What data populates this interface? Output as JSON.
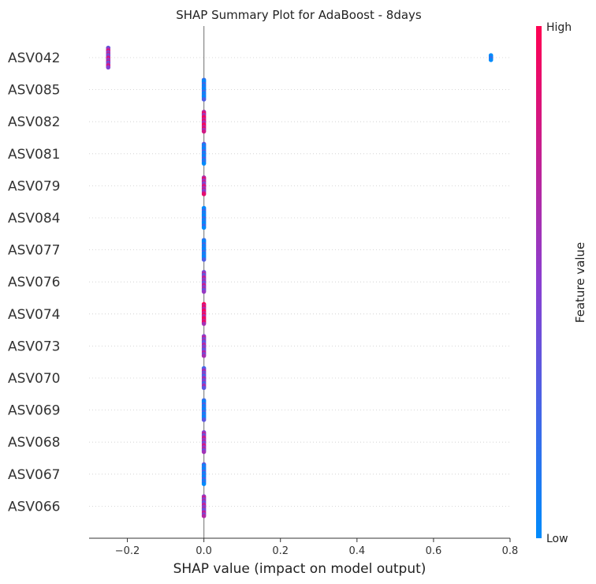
{
  "chart_data": {
    "type": "scatter",
    "subtype": "shap-beeswarm",
    "title": "SHAP Summary Plot for AdaBoost - 8days",
    "xlabel": "SHAP value (impact on model output)",
    "ylabel": "",
    "xlim": [
      -0.3,
      0.8
    ],
    "xticks": [
      -0.2,
      0.0,
      0.2,
      0.4,
      0.6,
      0.8
    ],
    "xtick_labels": [
      "−0.2",
      "0.0",
      "0.2",
      "0.4",
      "0.6",
      "0.8"
    ],
    "zero_line": 0.0,
    "grid": false,
    "colorbar": {
      "label": "Feature value",
      "high_label": "High",
      "low_label": "Low",
      "high_color": "#ff0052",
      "low_color": "#008bfb",
      "mid_color": "#8a3fd0"
    },
    "features": [
      {
        "name": "ASV042",
        "clusters": [
          {
            "x": -0.25,
            "n": 14,
            "tone": 0.6
          },
          {
            "x": 0.75,
            "n": 4,
            "tone": 0.0
          }
        ]
      },
      {
        "name": "ASV085",
        "clusters": [
          {
            "x": 0.0,
            "n": 14,
            "tone": 0.05
          }
        ]
      },
      {
        "name": "ASV082",
        "clusters": [
          {
            "x": 0.0,
            "n": 14,
            "tone": 0.8
          }
        ]
      },
      {
        "name": "ASV081",
        "clusters": [
          {
            "x": 0.0,
            "n": 14,
            "tone": 0.1
          }
        ]
      },
      {
        "name": "ASV079",
        "clusters": [
          {
            "x": 0.0,
            "n": 12,
            "tone": 0.65
          }
        ]
      },
      {
        "name": "ASV084",
        "clusters": [
          {
            "x": 0.0,
            "n": 14,
            "tone": 0.05
          }
        ]
      },
      {
        "name": "ASV077",
        "clusters": [
          {
            "x": 0.0,
            "n": 14,
            "tone": 0.05
          }
        ]
      },
      {
        "name": "ASV076",
        "clusters": [
          {
            "x": 0.0,
            "n": 14,
            "tone": 0.55
          }
        ]
      },
      {
        "name": "ASV074",
        "clusters": [
          {
            "x": 0.0,
            "n": 14,
            "tone": 0.85
          }
        ]
      },
      {
        "name": "ASV073",
        "clusters": [
          {
            "x": 0.0,
            "n": 14,
            "tone": 0.5
          }
        ]
      },
      {
        "name": "ASV070",
        "clusters": [
          {
            "x": 0.0,
            "n": 14,
            "tone": 0.45
          }
        ]
      },
      {
        "name": "ASV069",
        "clusters": [
          {
            "x": 0.0,
            "n": 14,
            "tone": 0.1
          }
        ]
      },
      {
        "name": "ASV068",
        "clusters": [
          {
            "x": 0.0,
            "n": 14,
            "tone": 0.6
          }
        ]
      },
      {
        "name": "ASV067",
        "clusters": [
          {
            "x": 0.0,
            "n": 14,
            "tone": 0.1
          }
        ]
      },
      {
        "name": "ASV066",
        "clusters": [
          {
            "x": 0.0,
            "n": 14,
            "tone": 0.55
          }
        ]
      }
    ]
  }
}
